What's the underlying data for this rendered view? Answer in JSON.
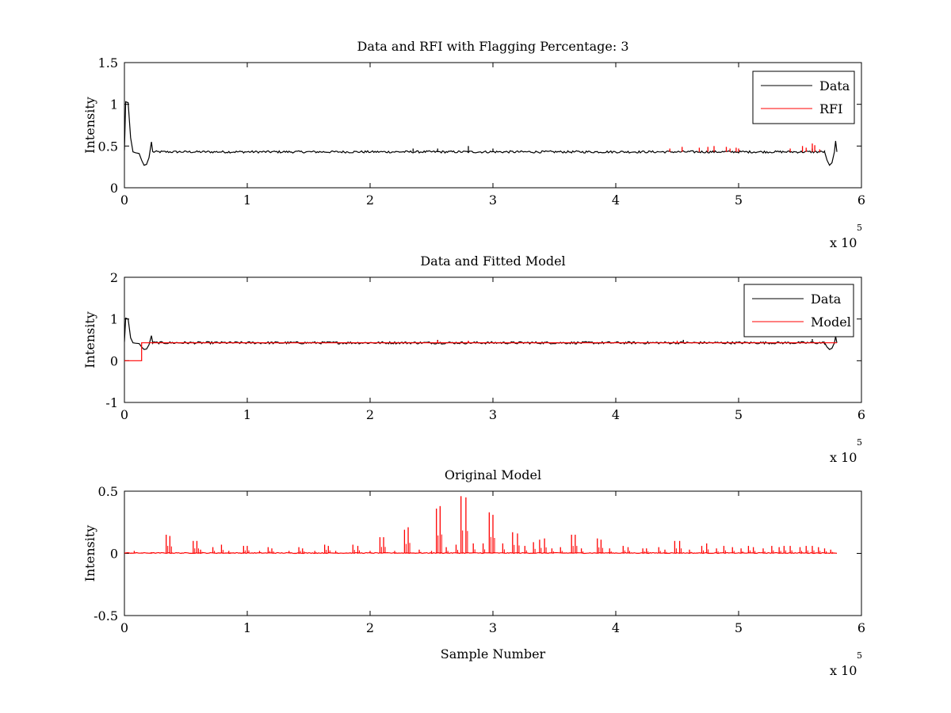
{
  "chart_data": [
    {
      "type": "line",
      "title": "Data and RFI with Flagging Percentage: 3",
      "xlabel": "",
      "ylabel": "Intensity",
      "xlim": [
        0,
        6
      ],
      "ylim": [
        0,
        1.5
      ],
      "x_ticks": [
        "0",
        "1",
        "2",
        "3",
        "4",
        "5",
        "6"
      ],
      "y_ticks": [
        "0",
        "0.5",
        "1",
        "1.5"
      ],
      "x_multiplier": {
        "base": "x 10",
        "exponent": "5"
      },
      "legend": {
        "placement": "top-right",
        "entries": [
          {
            "name": "Data",
            "color": "#000000"
          },
          {
            "name": "RFI",
            "color": "#ff0000"
          }
        ]
      },
      "series": [
        {
          "name": "Data",
          "color": "#000000",
          "baseline": 0.43,
          "points": [
            [
              0,
              0.45
            ],
            [
              0.01,
              1.03
            ],
            [
              0.03,
              1.02
            ],
            [
              0.05,
              0.6
            ],
            [
              0.07,
              0.43
            ],
            [
              0.09,
              0.42
            ],
            [
              0.12,
              0.41
            ],
            [
              0.14,
              0.33
            ],
            [
              0.16,
              0.27
            ],
            [
              0.18,
              0.28
            ],
            [
              0.2,
              0.36
            ],
            [
              0.22,
              0.55
            ],
            [
              0.23,
              0.43
            ],
            [
              5.7,
              0.43
            ],
            [
              5.72,
              0.33
            ],
            [
              5.74,
              0.27
            ],
            [
              5.76,
              0.3
            ],
            [
              5.78,
              0.43
            ],
            [
              5.79,
              0.56
            ],
            [
              5.8,
              0.43
            ]
          ],
          "spikes": [
            [
              2.35,
              0.47
            ],
            [
              2.55,
              0.47
            ],
            [
              2.8,
              0.5
            ],
            [
              3.0,
              0.47
            ],
            [
              5.6,
              0.47
            ]
          ]
        },
        {
          "name": "RFI",
          "color": "#ff0000",
          "spikes": [
            [
              4.44,
              0.47
            ],
            [
              4.54,
              0.49
            ],
            [
              4.68,
              0.48
            ],
            [
              4.75,
              0.49
            ],
            [
              4.8,
              0.5
            ],
            [
              4.9,
              0.49
            ],
            [
              4.93,
              0.47
            ],
            [
              4.98,
              0.48
            ],
            [
              5.0,
              0.47
            ],
            [
              5.42,
              0.47
            ],
            [
              5.52,
              0.5
            ],
            [
              5.55,
              0.48
            ],
            [
              5.6,
              0.53
            ],
            [
              5.62,
              0.51
            ],
            [
              5.66,
              0.46
            ]
          ]
        }
      ]
    },
    {
      "type": "line",
      "title": "Data and Fitted Model",
      "xlabel": "",
      "ylabel": "Intensity",
      "xlim": [
        0,
        6
      ],
      "ylim": [
        -1,
        2
      ],
      "x_ticks": [
        "0",
        "1",
        "2",
        "3",
        "4",
        "5",
        "6"
      ],
      "y_ticks": [
        "-1",
        "0",
        "1",
        "2"
      ],
      "x_multiplier": {
        "base": "x 10",
        "exponent": "5"
      },
      "legend": {
        "placement": "top-right",
        "entries": [
          {
            "name": "Data",
            "color": "#000000"
          },
          {
            "name": "Model",
            "color": "#ff0000"
          }
        ]
      },
      "series": [
        {
          "name": "Data",
          "color": "#000000",
          "baseline": 0.43,
          "points": [
            [
              0,
              0.45
            ],
            [
              0.01,
              1.02
            ],
            [
              0.03,
              1.0
            ],
            [
              0.05,
              0.55
            ],
            [
              0.07,
              0.43
            ],
            [
              0.09,
              0.42
            ],
            [
              0.12,
              0.41
            ],
            [
              0.14,
              0.33
            ],
            [
              0.16,
              0.27
            ],
            [
              0.18,
              0.28
            ],
            [
              0.2,
              0.38
            ],
            [
              0.22,
              0.6
            ],
            [
              0.23,
              0.43
            ],
            [
              5.7,
              0.43
            ],
            [
              5.72,
              0.33
            ],
            [
              5.74,
              0.27
            ],
            [
              5.76,
              0.3
            ],
            [
              5.78,
              0.43
            ],
            [
              5.79,
              0.58
            ],
            [
              5.8,
              0.43
            ]
          ],
          "spikes": [
            [
              2.55,
              0.5
            ],
            [
              4.55,
              0.5
            ],
            [
              5.6,
              0.52
            ]
          ]
        },
        {
          "name": "Model",
          "color": "#ff0000",
          "points": [
            [
              0,
              0.0
            ],
            [
              0.14,
              0.0
            ],
            [
              0.14,
              0.43
            ],
            [
              5.8,
              0.43
            ]
          ],
          "spikes": [
            [
              2.55,
              0.49
            ],
            [
              2.8,
              0.48
            ],
            [
              4.5,
              0.48
            ]
          ]
        }
      ]
    },
    {
      "type": "line",
      "title": "Original Model",
      "xlabel": "Sample Number",
      "ylabel": "Intensity",
      "xlim": [
        0,
        6
      ],
      "ylim": [
        -0.5,
        0.5
      ],
      "x_ticks": [
        "0",
        "1",
        "2",
        "3",
        "4",
        "5",
        "6"
      ],
      "y_ticks": [
        "-0.5",
        "0",
        "0.5"
      ],
      "x_multiplier": {
        "base": "x 10",
        "exponent": "5"
      },
      "series": [
        {
          "name": "",
          "color": "#ff0000",
          "baseline": 0.0,
          "x_range": [
            0,
            5.8
          ],
          "spikes": [
            [
              0.08,
              0.02
            ],
            [
              0.22,
              0.01
            ],
            [
              0.34,
              0.15
            ],
            [
              0.37,
              0.14
            ],
            [
              0.56,
              0.1
            ],
            [
              0.59,
              0.1
            ],
            [
              0.62,
              0.03
            ],
            [
              0.72,
              0.05
            ],
            [
              0.79,
              0.07
            ],
            [
              0.85,
              0.02
            ],
            [
              0.97,
              0.06
            ],
            [
              1.0,
              0.06
            ],
            [
              1.1,
              0.02
            ],
            [
              1.17,
              0.05
            ],
            [
              1.2,
              0.04
            ],
            [
              1.34,
              0.02
            ],
            [
              1.42,
              0.05
            ],
            [
              1.45,
              0.04
            ],
            [
              1.55,
              0.02
            ],
            [
              1.63,
              0.07
            ],
            [
              1.66,
              0.06
            ],
            [
              1.72,
              0.02
            ],
            [
              1.86,
              0.07
            ],
            [
              1.9,
              0.06
            ],
            [
              2.0,
              0.02
            ],
            [
              2.08,
              0.13
            ],
            [
              2.11,
              0.13
            ],
            [
              2.2,
              0.02
            ],
            [
              2.28,
              0.19
            ],
            [
              2.31,
              0.21
            ],
            [
              2.4,
              0.03
            ],
            [
              2.5,
              0.02
            ],
            [
              2.54,
              0.36
            ],
            [
              2.57,
              0.38
            ],
            [
              2.62,
              0.05
            ],
            [
              2.7,
              0.07
            ],
            [
              2.74,
              0.46
            ],
            [
              2.78,
              0.45
            ],
            [
              2.84,
              0.08
            ],
            [
              2.92,
              0.08
            ],
            [
              2.97,
              0.33
            ],
            [
              3.0,
              0.31
            ],
            [
              3.08,
              0.08
            ],
            [
              3.16,
              0.17
            ],
            [
              3.2,
              0.16
            ],
            [
              3.26,
              0.06
            ],
            [
              3.33,
              0.09
            ],
            [
              3.38,
              0.11
            ],
            [
              3.42,
              0.12
            ],
            [
              3.48,
              0.04
            ],
            [
              3.55,
              0.05
            ],
            [
              3.64,
              0.15
            ],
            [
              3.67,
              0.15
            ],
            [
              3.72,
              0.04
            ],
            [
              3.85,
              0.12
            ],
            [
              3.88,
              0.11
            ],
            [
              3.95,
              0.04
            ],
            [
              4.06,
              0.06
            ],
            [
              4.1,
              0.05
            ],
            [
              4.22,
              0.04
            ],
            [
              4.25,
              0.04
            ],
            [
              4.35,
              0.05
            ],
            [
              4.4,
              0.03
            ],
            [
              4.48,
              0.1
            ],
            [
              4.52,
              0.1
            ],
            [
              4.6,
              0.03
            ],
            [
              4.7,
              0.06
            ],
            [
              4.74,
              0.08
            ],
            [
              4.82,
              0.04
            ],
            [
              4.88,
              0.06
            ],
            [
              4.95,
              0.05
            ],
            [
              5.02,
              0.04
            ],
            [
              5.08,
              0.06
            ],
            [
              5.12,
              0.05
            ],
            [
              5.2,
              0.04
            ],
            [
              5.27,
              0.06
            ],
            [
              5.33,
              0.05
            ],
            [
              5.37,
              0.06
            ],
            [
              5.42,
              0.06
            ],
            [
              5.5,
              0.05
            ],
            [
              5.55,
              0.06
            ],
            [
              5.6,
              0.06
            ],
            [
              5.65,
              0.05
            ],
            [
              5.7,
              0.04
            ],
            [
              5.75,
              0.03
            ]
          ]
        }
      ]
    }
  ]
}
